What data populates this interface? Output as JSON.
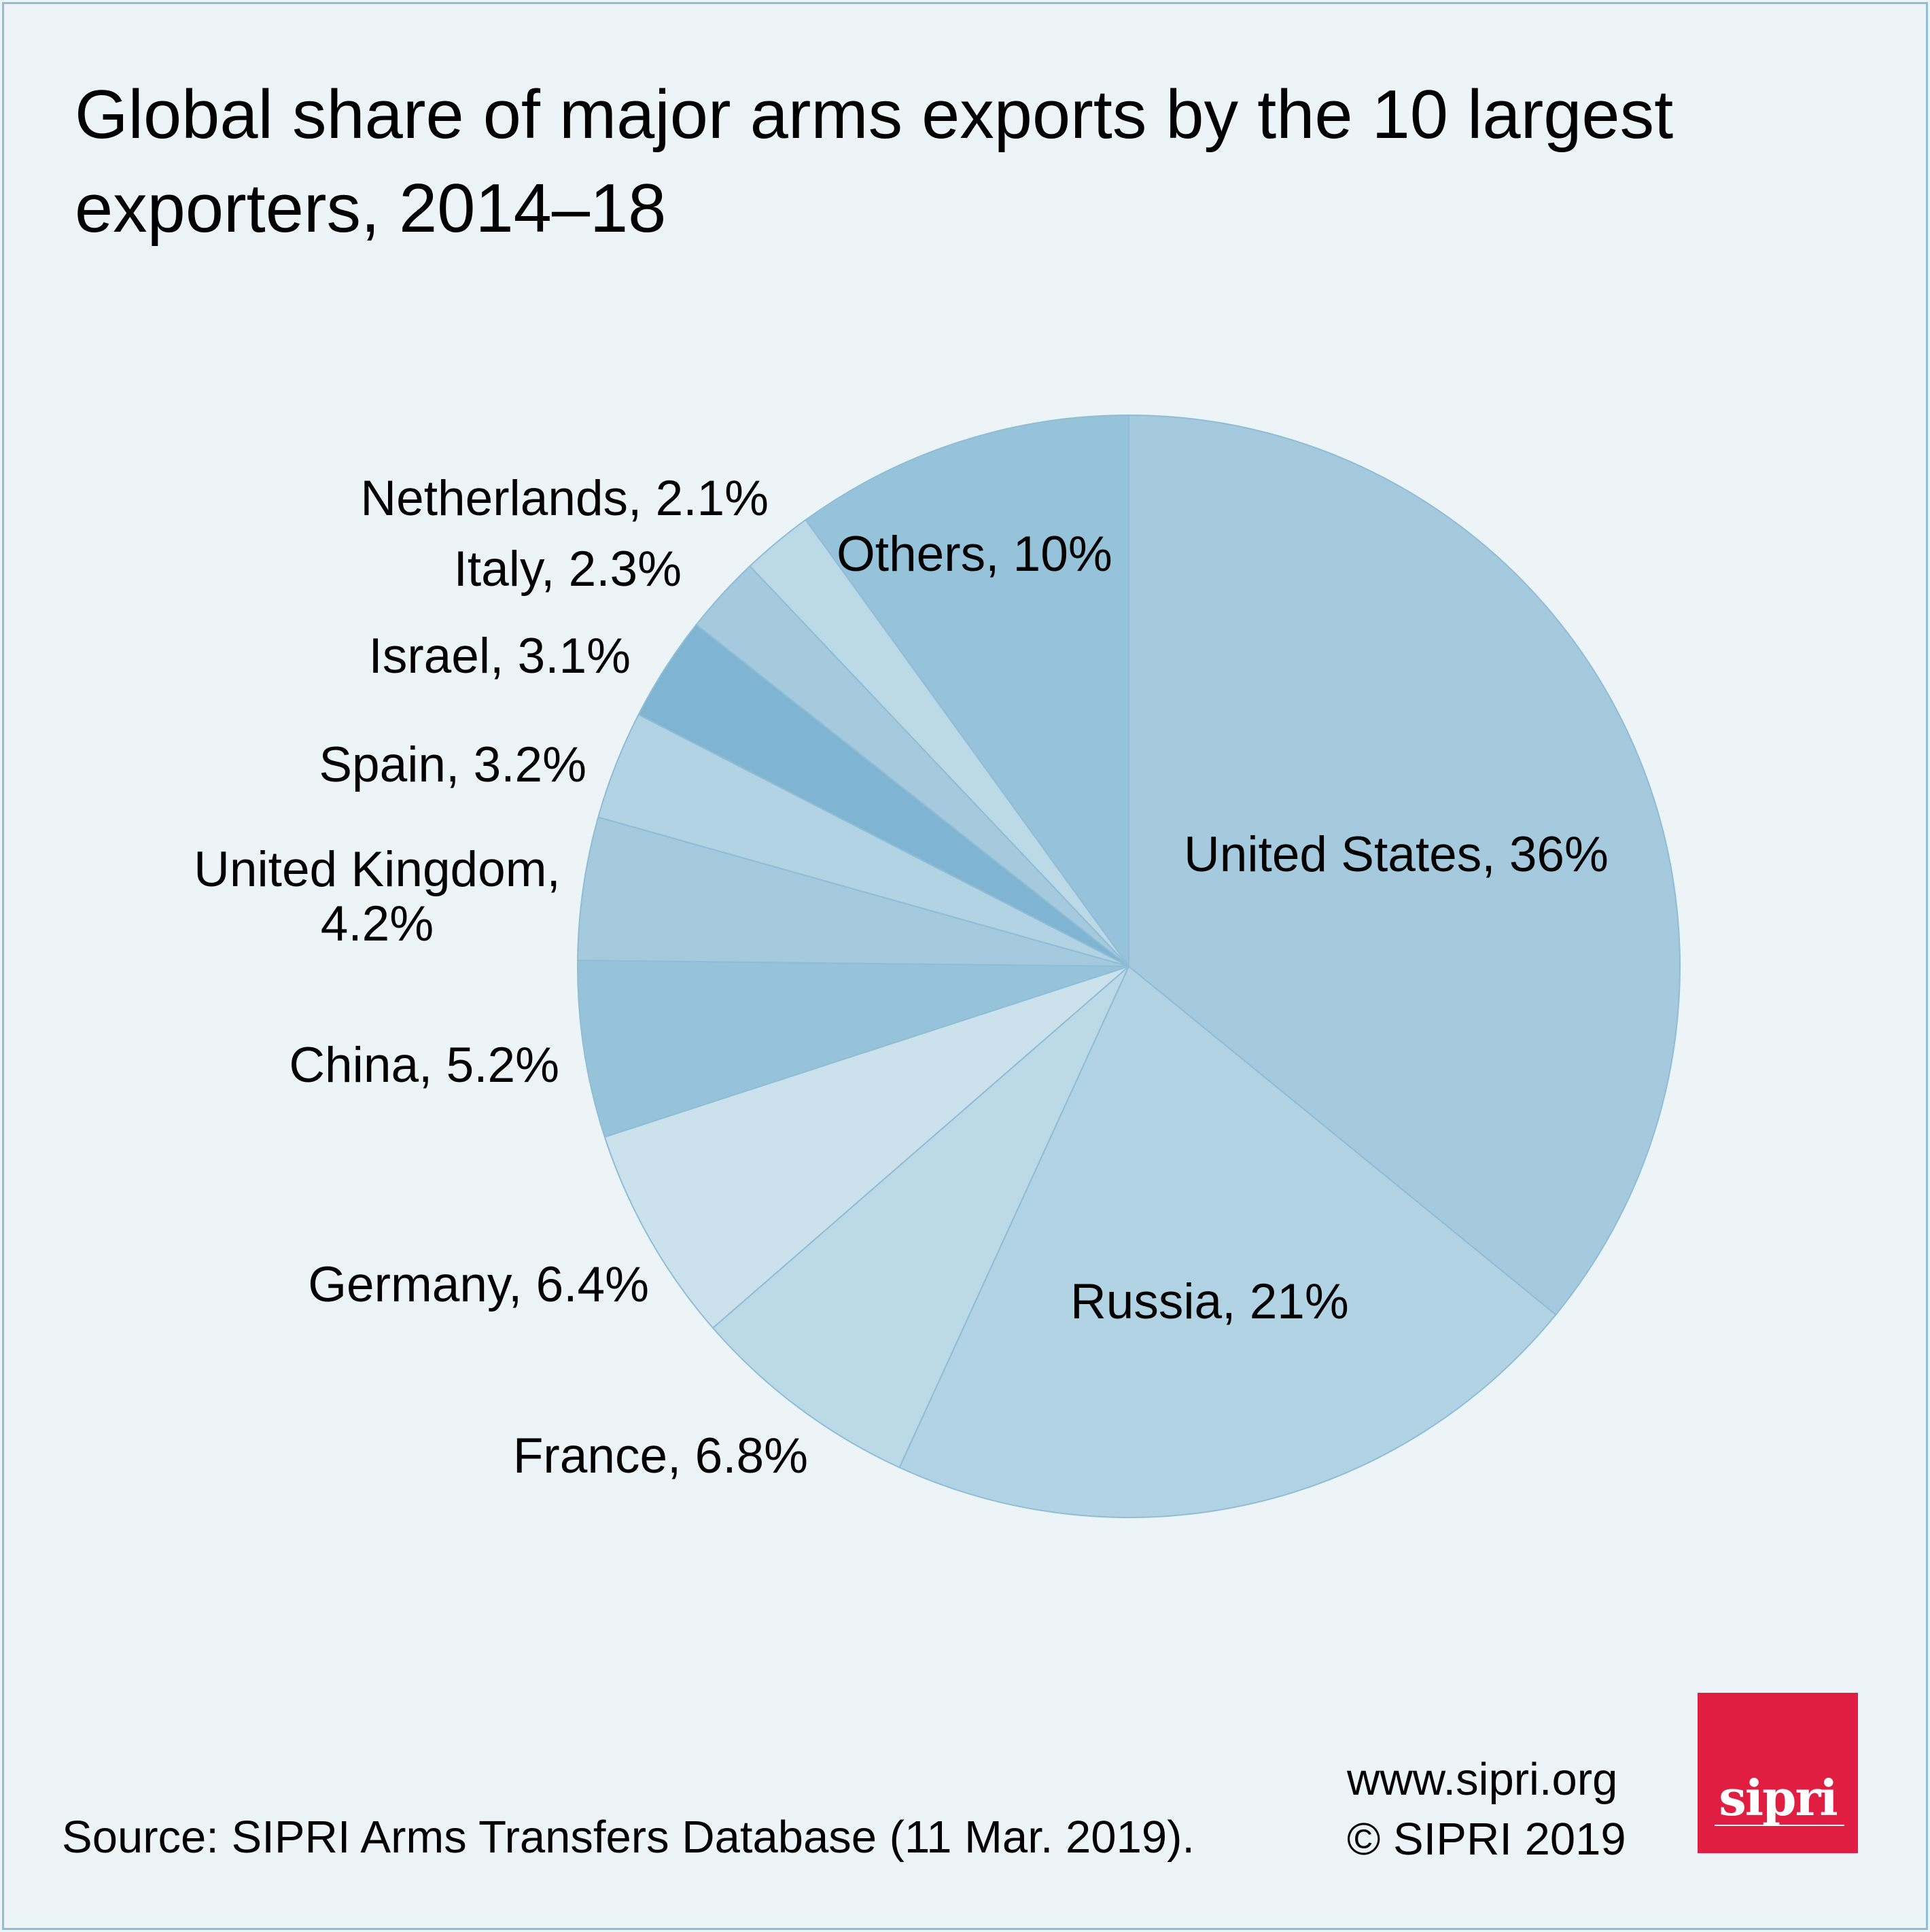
{
  "chart_data": {
    "type": "pie",
    "title": "Global share of major arms exports by the 10 largest exporters, 2014–18",
    "start_angle": "top",
    "direction": "clockwise",
    "slices": [
      {
        "label": "United States, 36%",
        "name": "United States",
        "value": 36,
        "color": "#a6cadd"
      },
      {
        "label": "Russia, 21%",
        "name": "Russia",
        "value": 21,
        "color": "#b2d3e3"
      },
      {
        "label": "France, 6.8%",
        "name": "France",
        "value": 6.8,
        "color": "#bcd9e7"
      },
      {
        "label": "Germany, 6.4%",
        "name": "Germany",
        "value": 6.4,
        "color": "#cbe1ec"
      },
      {
        "label": "China, 5.2%",
        "name": "China",
        "value": 5.2,
        "color": "#97c3da"
      },
      {
        "label": "United Kingdom, 4.2%",
        "name": "United Kingdom",
        "value": 4.2,
        "color": "#a6cadd"
      },
      {
        "label": "Spain, 3.2%",
        "name": "Spain",
        "value": 3.2,
        "color": "#b2d3e3"
      },
      {
        "label": "Israel, 3.1%",
        "name": "Israel",
        "value": 3.1,
        "color": "#7fb5d2"
      },
      {
        "label": "Italy, 2.3%",
        "name": "Italy",
        "value": 2.3,
        "color": "#a6cadd"
      },
      {
        "label": "Netherlands, 2.1%",
        "name": "Netherlands",
        "value": 2.1,
        "color": "#bcd9e7"
      },
      {
        "label": "Others, 10%",
        "name": "Others",
        "value": 10,
        "color": "#97c3da"
      }
    ]
  },
  "footer": {
    "source": "Source: SIPRI Arms Transfers Database (11 Mar. 2019).",
    "website": "www.sipri.org",
    "copyright": "© SIPRI 2019",
    "logo_text": "sipri",
    "logo_color": "#e01e42"
  },
  "colors": {
    "background": "#ecf4f8",
    "slice_stroke": "#8fbdd6"
  }
}
